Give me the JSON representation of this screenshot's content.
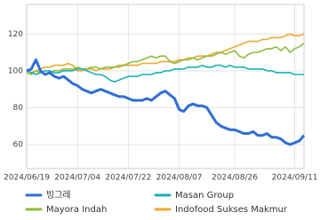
{
  "chart_data": {
    "type": "line",
    "categories": [
      "2024/06/19",
      null,
      null,
      null,
      null,
      null,
      null,
      null,
      null,
      null,
      null,
      "2024/07/04",
      null,
      null,
      null,
      null,
      null,
      null,
      null,
      null,
      null,
      null,
      "2024/07/22",
      null,
      null,
      null,
      null,
      null,
      null,
      null,
      null,
      null,
      null,
      "2024/08/07",
      null,
      null,
      null,
      null,
      null,
      null,
      null,
      null,
      null,
      null,
      null,
      "2024/08/26",
      null,
      null,
      null,
      null,
      null,
      null,
      null,
      null,
      null,
      null,
      null,
      null,
      "2024/09/11",
      null,
      null
    ],
    "ylim": [
      47,
      136
    ],
    "yticks": [
      60,
      80,
      100,
      120
    ],
    "grid": true,
    "legend": "bottom",
    "series": [
      {
        "name": "빙그레",
        "color": "#2f6fd0",
        "values": [
          100,
          101,
          106,
          100,
          98,
          99,
          97,
          96,
          97,
          95,
          93,
          92,
          90,
          89,
          88,
          89,
          90,
          89,
          88,
          87,
          86,
          86,
          85,
          84,
          84,
          84,
          85,
          84,
          86,
          88,
          89,
          87,
          85,
          79,
          78,
          81,
          82,
          81,
          81,
          80,
          76,
          72,
          70,
          69,
          68,
          68,
          67,
          66,
          66,
          67,
          65,
          65,
          66,
          64,
          64,
          63,
          61,
          60,
          61,
          62,
          65
        ]
      },
      {
        "name": "Masan Group",
        "color": "#1ab0b8",
        "values": [
          100,
          99,
          98,
          99,
          100,
          100,
          99,
          99,
          100,
          100,
          100,
          101,
          101,
          100,
          99,
          98,
          98,
          97,
          95,
          94,
          95,
          96,
          97,
          97,
          97,
          98,
          98,
          98,
          99,
          99,
          100,
          100,
          101,
          101,
          101,
          102,
          102,
          102,
          103,
          102,
          102,
          103,
          103,
          102,
          103,
          102,
          102,
          102,
          101,
          101,
          101,
          101,
          100,
          100,
          99,
          99,
          99,
          99,
          98,
          98,
          98
        ]
      },
      {
        "name": "Mayora Indah",
        "color": "#8fbc3c",
        "values": [
          99,
          98,
          100,
          99,
          98,
          99,
          100,
          100,
          101,
          101,
          101,
          102,
          101,
          101,
          102,
          102,
          101,
          102,
          102,
          102,
          103,
          103,
          104,
          105,
          105,
          106,
          107,
          108,
          107,
          108,
          108,
          105,
          104,
          105,
          106,
          106,
          107,
          106,
          107,
          108,
          108,
          109,
          110,
          109,
          110,
          111,
          108,
          107,
          109,
          110,
          110,
          111,
          112,
          112,
          113,
          111,
          113,
          110,
          112,
          113,
          115
        ]
      },
      {
        "name": "Indofood Sukses Makmur",
        "color": "#f0a830",
        "values": [
          100,
          99,
          100,
          101,
          102,
          102,
          103,
          103,
          103,
          104,
          103,
          100,
          100,
          101,
          101,
          100,
          101,
          101,
          101,
          102,
          102,
          103,
          103,
          103,
          103,
          104,
          104,
          104,
          104,
          105,
          105,
          105,
          105,
          106,
          106,
          107,
          107,
          108,
          108,
          108,
          109,
          110,
          110,
          111,
          112,
          113,
          114,
          115,
          116,
          116,
          116,
          117,
          117,
          118,
          118,
          118,
          119,
          120,
          119,
          119,
          120
        ]
      }
    ]
  }
}
